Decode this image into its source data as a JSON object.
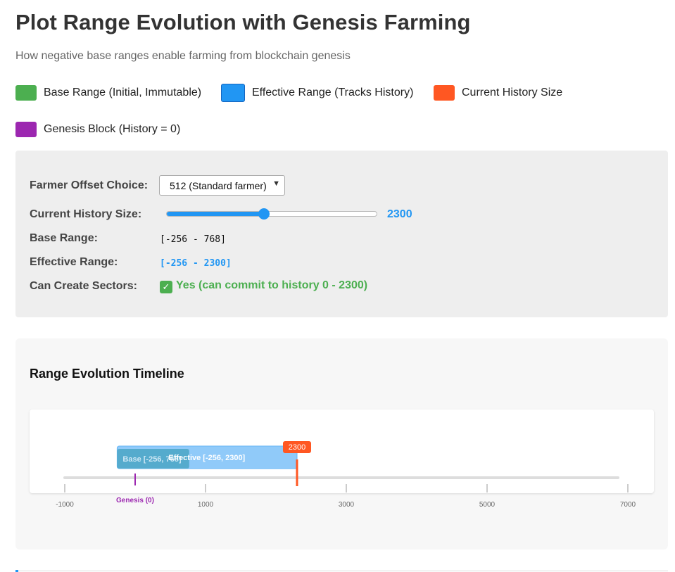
{
  "header": {
    "title": "Plot Range Evolution with Genesis Farming",
    "subtitle": "How negative base ranges enable farming from blockchain genesis"
  },
  "legend": [
    {
      "label": "Base Range (Initial, Immutable)",
      "color": "#4caf50"
    },
    {
      "label": "Effective Range (Tracks History)",
      "color": "#2196f3"
    },
    {
      "label": "Current History Size",
      "color": "#ff5722"
    },
    {
      "label": "Genesis Block (History = 0)",
      "color": "#9c27b0"
    }
  ],
  "controls": {
    "offset_label": "Farmer Offset Choice:",
    "offset_selected": "512 (Standard farmer)",
    "history_label": "Current History Size:",
    "history_value": "2300",
    "history_fraction": 0.46,
    "base_range_label": "Base Range:",
    "base_range_value": "[-256 - 768]",
    "effective_range_label": "Effective Range:",
    "effective_range_value": "[-256 - 2300]",
    "can_create_label": "Can Create Sectors:",
    "can_create_value": "Yes (can commit to history 0 - 2300)",
    "check_icon": "check-mark-icon"
  },
  "timeline": {
    "title": "Range Evolution Timeline",
    "axis_min": -1000,
    "axis_max": 7000,
    "ticks": [
      "-1000",
      "1000",
      "3000",
      "5000",
      "7000"
    ],
    "tick_values": [
      -1000,
      1000,
      3000,
      5000,
      7000
    ],
    "base": {
      "start": -256,
      "end": 768,
      "label": "Base [-256, 768]",
      "color": "#4caf50"
    },
    "effective": {
      "start": -256,
      "end": 2300,
      "label": "Effective [-256, 2300]",
      "color": "#2196f3"
    },
    "history": {
      "value": 2300,
      "label": "2300",
      "color": "#ff5722"
    },
    "genesis": {
      "value": 0,
      "label": "Genesis (0)",
      "color": "#9c27b0"
    }
  }
}
